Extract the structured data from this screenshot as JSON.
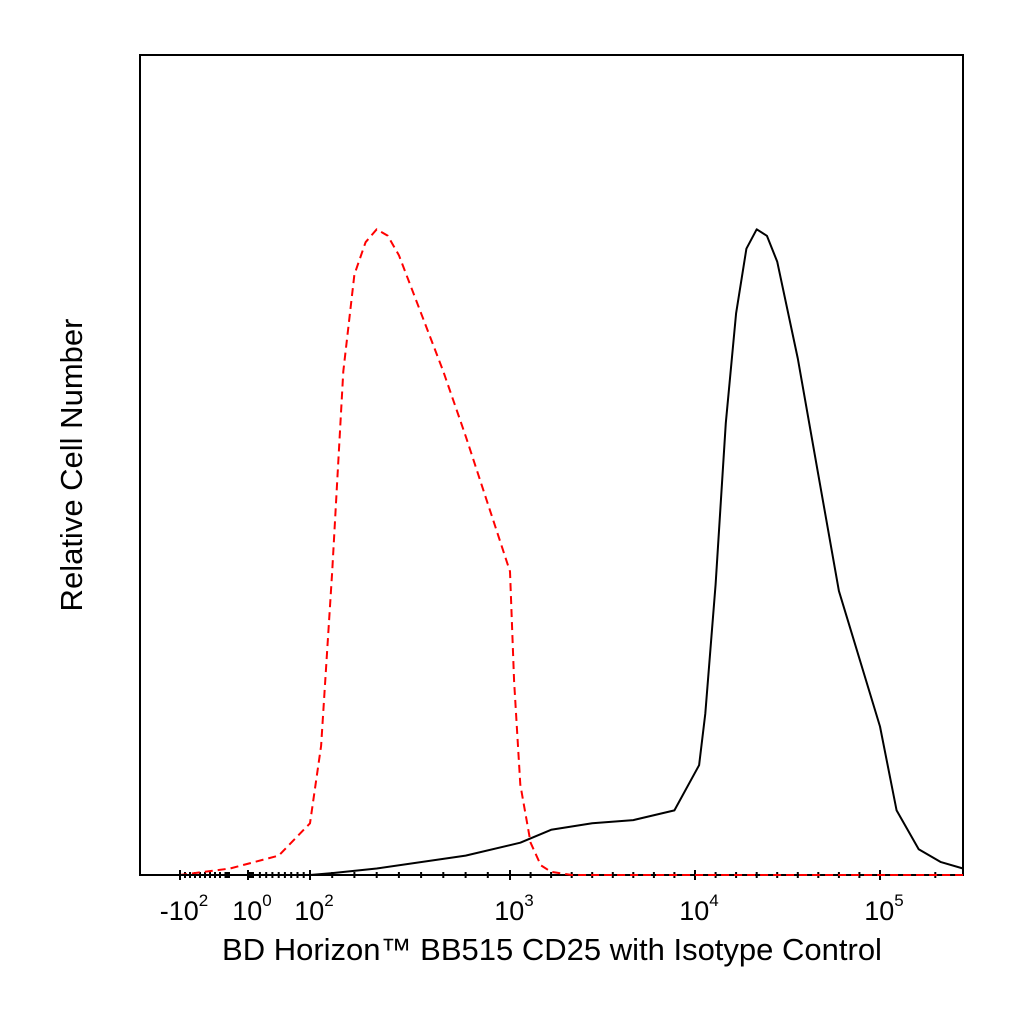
{
  "chart_data": {
    "type": "line",
    "title": "",
    "xlabel": "BD Horizon™ BB515 CD25 with Isotype Control",
    "ylabel": "Relative Cell Number",
    "x_scale": "biexponential (log with linear region near zero)",
    "xlim": [
      -300,
      250000
    ],
    "ylim": [
      0,
      1.27
    ],
    "x_ticks": [
      {
        "value": -100,
        "base": "-10",
        "exp": "2"
      },
      {
        "value": 1,
        "base": "10",
        "exp": "0"
      },
      {
        "value": 100,
        "base": "10",
        "exp": "2"
      },
      {
        "value": 1000,
        "base": "10",
        "exp": "3"
      },
      {
        "value": 10000,
        "base": "10",
        "exp": "4"
      },
      {
        "value": 100000,
        "base": "10",
        "exp": "5"
      }
    ],
    "grid": false,
    "legend": "none",
    "series": [
      {
        "color": "#ff0000",
        "style": "dashed",
        "x": [
          -300,
          -100,
          0,
          50,
          100,
          150,
          200,
          250,
          300,
          350,
          400,
          450,
          500,
          600,
          700,
          800,
          1000,
          1200,
          1500,
          2000,
          2500,
          3000,
          4000,
          6000,
          10000,
          50000,
          250000
        ],
        "y": [
          0.0,
          0.0,
          0.01,
          0.03,
          0.08,
          0.2,
          0.47,
          0.78,
          0.93,
          0.98,
          1.0,
          0.99,
          0.96,
          0.87,
          0.78,
          0.68,
          0.47,
          0.3,
          0.14,
          0.05,
          0.015,
          0.005,
          0.0,
          0.0,
          0.0,
          0.0,
          0.0
        ]
      },
      {
        "color": "#000000",
        "style": "solid",
        "x": [
          -300,
          100,
          200,
          400,
          800,
          1500,
          3000,
          5000,
          7000,
          9000,
          12000,
          15000,
          20000,
          25000,
          30000,
          35000,
          40000,
          45000,
          50000,
          60000,
          70000,
          80000,
          100000,
          130000,
          170000,
          210000,
          250000
        ],
        "y": [
          0.0,
          0.0,
          0.003,
          0.01,
          0.03,
          0.05,
          0.07,
          0.08,
          0.085,
          0.1,
          0.17,
          0.25,
          0.45,
          0.7,
          0.87,
          0.97,
          1.0,
          0.99,
          0.95,
          0.8,
          0.62,
          0.44,
          0.23,
          0.1,
          0.04,
          0.02,
          0.01
        ]
      }
    ]
  }
}
